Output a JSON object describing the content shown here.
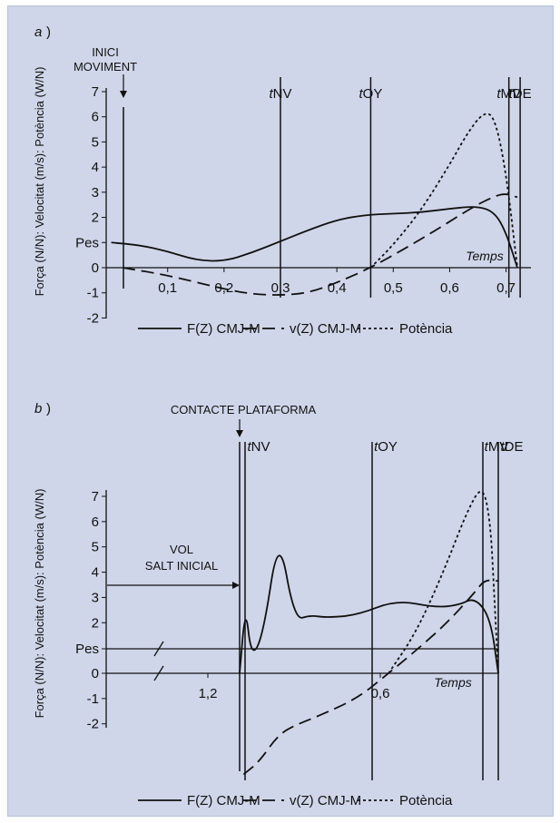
{
  "chart_data": [
    {
      "type": "line",
      "panel_label": "a",
      "ylabel": "Força (N/N): Velocitat (m/s): Potència (W/N)",
      "xlabel": "Temps",
      "y_ticks": [
        "7",
        "6",
        "5",
        "4",
        "3",
        "2",
        "Pes",
        "0",
        "-1",
        "-2"
      ],
      "x_ticks": [
        "0,1",
        "0,2",
        "0,3",
        "0,4",
        "0,5",
        "0,6",
        "0,7"
      ],
      "ylim": [
        -2,
        7
      ],
      "xlim": [
        0,
        0.74
      ],
      "event_annotation": "INICI MOVIMENT",
      "markers": [
        {
          "prefix": "t",
          "label": "NV",
          "x": 0.3
        },
        {
          "prefix": "t",
          "label": "OY",
          "x": 0.46
        },
        {
          "prefix": "t",
          "label": "MV",
          "x": 0.705
        },
        {
          "prefix": "t",
          "label": "DE",
          "x": 0.725
        }
      ],
      "series": [
        {
          "name": "F(Z) CMJ-M",
          "style": "solid",
          "x": [
            0,
            0.05,
            0.1,
            0.15,
            0.2,
            0.25,
            0.3,
            0.35,
            0.4,
            0.45,
            0.5,
            0.55,
            0.6,
            0.65,
            0.68,
            0.7,
            0.72
          ],
          "y": [
            1,
            0.9,
            0.65,
            0.3,
            0.25,
            0.6,
            1.05,
            1.5,
            1.9,
            2.1,
            2.15,
            2.2,
            2.35,
            2.45,
            2.2,
            1.4,
            0
          ]
        },
        {
          "name": "v(Z) CMJ-M",
          "style": "dashed",
          "x": [
            0.02,
            0.1,
            0.2,
            0.25,
            0.3,
            0.35,
            0.4,
            0.46,
            0.52,
            0.58,
            0.64,
            0.68,
            0.7,
            0.72
          ],
          "y": [
            0,
            -0.3,
            -0.85,
            -1.05,
            -1.1,
            -1.0,
            -0.6,
            0,
            0.75,
            1.55,
            2.4,
            2.85,
            2.95,
            2.8
          ]
        },
        {
          "name": "Potència",
          "style": "dotted",
          "x": [
            0.46,
            0.5,
            0.55,
            0.6,
            0.63,
            0.66,
            0.68,
            0.7,
            0.72
          ],
          "y": [
            0,
            0.9,
            2.3,
            4.1,
            5.3,
            6.2,
            6.0,
            3.8,
            0
          ]
        }
      ]
    },
    {
      "type": "line",
      "panel_label": "b",
      "ylabel": "Força (N/N): Velocitat (m/s): Potència (W/N)",
      "xlabel": "Temps",
      "y_ticks": [
        "7",
        "6",
        "5",
        "4",
        "3",
        "2",
        "Pes",
        "0",
        "-1",
        "-2"
      ],
      "x_ticks": [
        "1,2",
        "0,6"
      ],
      "ylim": [
        -2,
        7
      ],
      "axis_break": true,
      "event_annotation": "CONTACTE PLATAFORMA",
      "flight_annotation": [
        "VOL",
        "SALT INICIAL"
      ],
      "markers": [
        {
          "prefix": "t",
          "label": "NV"
        },
        {
          "prefix": "t",
          "label": "OY"
        },
        {
          "prefix": "t",
          "label": "MV"
        },
        {
          "prefix": "t",
          "label": "DE"
        }
      ],
      "series": [
        {
          "name": "F(Z) CMJ-M",
          "style": "solid",
          "x": [
            0,
            0.015,
            0.03,
            0.06,
            0.1,
            0.14,
            0.18,
            0.22,
            0.3,
            0.4,
            0.5,
            0.56,
            0.6,
            0.64,
            0.66
          ],
          "y": [
            0,
            2.7,
            0.6,
            1.5,
            5.6,
            2.1,
            2.3,
            2.2,
            2.3,
            2.9,
            2.6,
            2.7,
            3.0,
            2.2,
            0
          ]
        },
        {
          "name": "v(Z) CMJ-M",
          "style": "dashed",
          "x": [
            0.01,
            0.05,
            0.1,
            0.15,
            0.2,
            0.3,
            0.38,
            0.45,
            0.53,
            0.6,
            0.625,
            0.66
          ],
          "y": [
            -4,
            -3.5,
            -2.4,
            -2.0,
            -1.7,
            -1.0,
            0,
            0.9,
            2.0,
            3.2,
            3.7,
            3.65
          ]
        },
        {
          "name": "Potència",
          "style": "dotted",
          "x": [
            0.38,
            0.45,
            0.52,
            0.58,
            0.62,
            0.64,
            0.65,
            0.66
          ],
          "y": [
            0,
            1.6,
            4.0,
            6.4,
            7.5,
            6.0,
            3.0,
            0
          ]
        }
      ]
    }
  ],
  "legend": {
    "entries": [
      {
        "label": "F(Z) CMJ-M",
        "style": "solid"
      },
      {
        "label": "v(Z) CMJ-M",
        "style": "dashed"
      },
      {
        "label": "Potència",
        "style": "dotted"
      }
    ]
  }
}
